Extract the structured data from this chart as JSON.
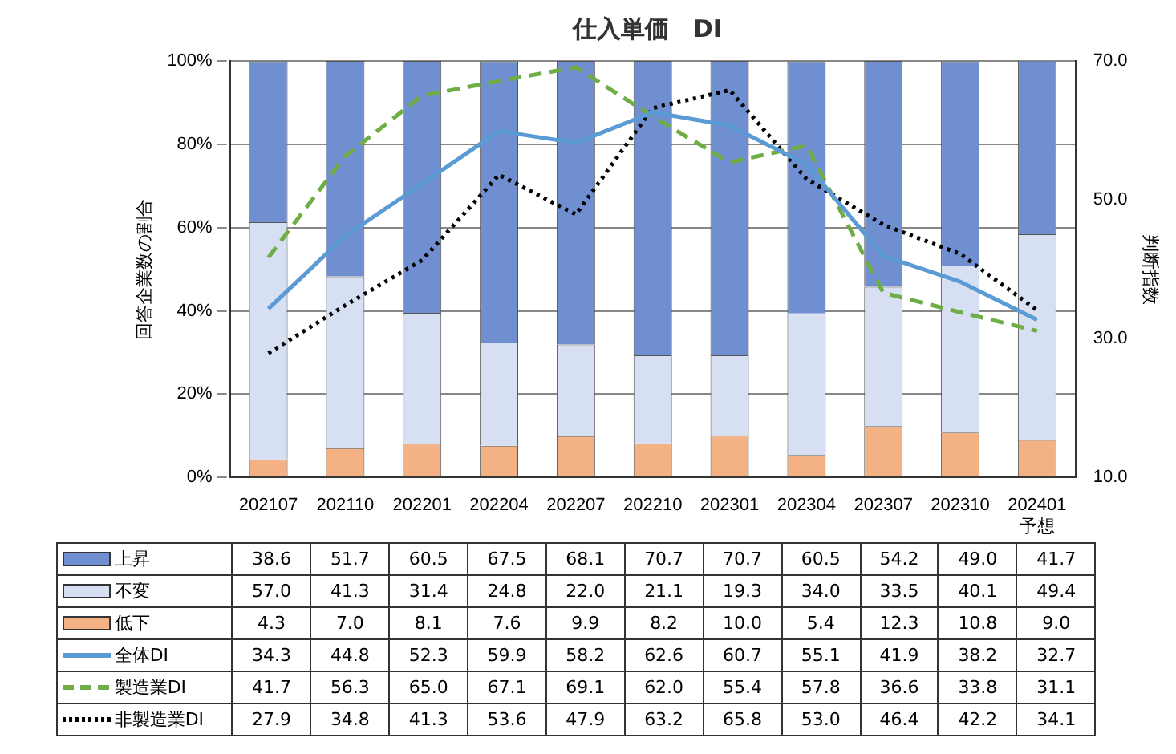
{
  "chart_data": {
    "type": "bar",
    "title": "仕入単価　DI",
    "ylabel": "回答企業数の割合",
    "y2label": "判断指数",
    "categories": [
      "202107",
      "202110",
      "202201",
      "202204",
      "202207",
      "202210",
      "202301",
      "202304",
      "202307",
      "202310",
      "202401\n予想"
    ],
    "stacked": true,
    "grid": "y",
    "legend": "bottom",
    "marker": "none",
    "ylim": [
      0,
      100
    ],
    "yticks": [
      {
        "value": 0,
        "label": "0%"
      },
      {
        "value": 20,
        "label": "20%"
      },
      {
        "value": 40,
        "label": "40%"
      },
      {
        "value": 60,
        "label": "60%"
      },
      {
        "value": 80,
        "label": "80%"
      },
      {
        "value": 100,
        "label": "100%"
      }
    ],
    "y2lim": [
      10,
      70
    ],
    "y2ticks": [
      {
        "value": 10,
        "label": "10.0"
      },
      {
        "value": 30,
        "label": "30.0"
      },
      {
        "value": 50,
        "label": "50.0"
      },
      {
        "value": 70,
        "label": "70.0"
      }
    ],
    "series": [
      {
        "name": "低下",
        "color": "#f4b183",
        "values": [
          4.3,
          7.0,
          8.1,
          7.6,
          9.9,
          8.2,
          10.0,
          5.4,
          12.3,
          10.8,
          9.0
        ],
        "value_labels": [
          "4.3",
          "7.0",
          "8.1",
          "7.6",
          "9.9",
          "8.2",
          "10.0",
          "5.4",
          "12.3",
          "10.8",
          "9.0"
        ]
      },
      {
        "name": "不変",
        "color": "#d6e0f2",
        "values": [
          57.0,
          41.3,
          31.4,
          24.8,
          22.0,
          21.1,
          19.3,
          34.0,
          33.5,
          40.1,
          49.4
        ],
        "value_labels": [
          "57.0",
          "41.3",
          "31.4",
          "24.8",
          "22.0",
          "21.1",
          "19.3",
          "34.0",
          "33.5",
          "40.1",
          "49.4"
        ]
      },
      {
        "name": "上昇",
        "color": "#6f8fd0",
        "values": [
          38.6,
          51.7,
          60.5,
          67.5,
          68.1,
          70.7,
          70.7,
          60.5,
          54.2,
          49.0,
          41.7
        ],
        "value_labels": [
          "38.6",
          "51.7",
          "60.5",
          "67.5",
          "68.1",
          "70.7",
          "70.7",
          "60.5",
          "54.2",
          "49.0",
          "41.7"
        ]
      },
      {
        "name": "全体DI",
        "type": "line",
        "axis": "y2",
        "line_style": "solid",
        "color": "#5b9bd5",
        "values": [
          34.3,
          44.8,
          52.3,
          59.9,
          58.2,
          62.6,
          60.7,
          55.1,
          41.9,
          38.2,
          32.7
        ],
        "value_labels": [
          "34.3",
          "44.8",
          "52.3",
          "59.9",
          "58.2",
          "62.6",
          "60.7",
          "55.1",
          "41.9",
          "38.2",
          "32.7"
        ]
      },
      {
        "name": "製造業DI",
        "type": "line",
        "axis": "y2",
        "line_style": "dashed",
        "color": "#70ad47",
        "values": [
          41.7,
          56.3,
          65.0,
          67.1,
          69.1,
          62.0,
          55.4,
          57.8,
          36.6,
          33.8,
          31.1
        ],
        "value_labels": [
          "41.7",
          "56.3",
          "65.0",
          "67.1",
          "69.1",
          "62.0",
          "55.4",
          "57.8",
          "36.6",
          "33.8",
          "31.1"
        ]
      },
      {
        "name": "非製造業DI",
        "type": "line",
        "axis": "y2",
        "line_style": "dotted",
        "color": "#000000",
        "values": [
          27.9,
          34.8,
          41.3,
          53.6,
          47.9,
          63.2,
          65.8,
          53.0,
          46.4,
          42.2,
          34.1
        ],
        "value_labels": [
          "27.9",
          "34.8",
          "41.3",
          "53.6",
          "47.9",
          "63.2",
          "65.8",
          "53.0",
          "46.4",
          "42.2",
          "34.1"
        ]
      }
    ]
  }
}
